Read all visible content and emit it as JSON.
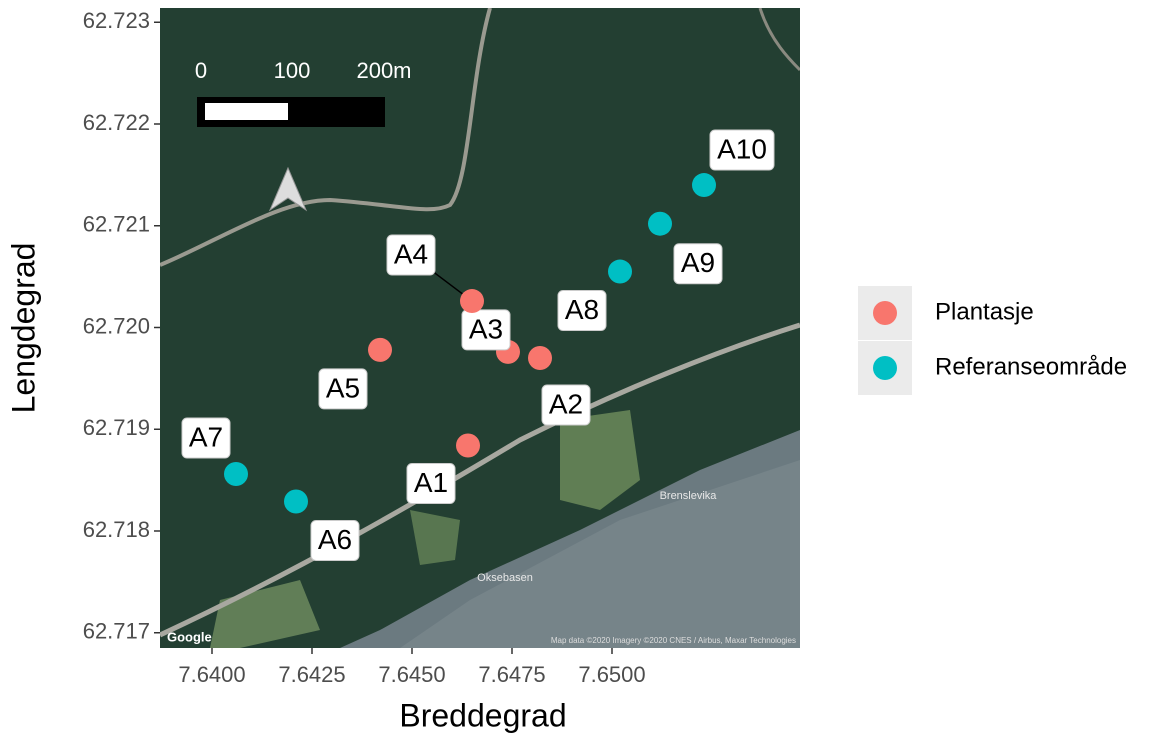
{
  "chart_data": {
    "type": "scatter",
    "x_label": "Breddegrad",
    "y_label": "Lengdegrad",
    "xlim": [
      7.6387,
      7.6547
    ],
    "ylim": [
      62.71685,
      62.72314
    ],
    "xticks": [
      {
        "value": 7.64,
        "label": "7.6400"
      },
      7.6425,
      {
        "value": 7.645,
        "label": "7.6450"
      },
      7.6475,
      {
        "value": 7.65,
        "label": "7.6500"
      }
    ],
    "yticks": [
      62.717,
      62.718,
      62.719,
      {
        "value": 62.72,
        "label": "62.720"
      },
      62.721,
      62.722,
      62.723
    ],
    "series": [
      {
        "name": "Plantasje",
        "color": "#F8766D",
        "labels": [
          "A1",
          "A2",
          "A3",
          "A4",
          "A5"
        ],
        "x": [
          7.6464,
          7.6482,
          7.6474,
          7.6465,
          7.6442
        ],
        "values": [
          62.71884,
          62.7197,
          62.71976,
          62.72026,
          62.71978
        ]
      },
      {
        "name": "Referanseområde",
        "color": "#00BFC4",
        "labels": [
          "A6",
          "A7",
          "A8",
          "A9",
          "A10"
        ],
        "x": [
          7.6421,
          7.6406,
          7.6502,
          7.6512,
          7.6523
        ],
        "values": [
          62.71829,
          62.71856,
          62.72055,
          62.72102,
          62.7214
        ]
      }
    ],
    "map_annotations": {
      "scale": [
        "0",
        "100",
        "200m"
      ],
      "places": [
        "Brenslevika",
        "Oksebasen"
      ],
      "attribution": "Map data ©2020 Imagery ©2020 CNES / Airbus, Maxar Technologies",
      "provider": "Google"
    }
  }
}
